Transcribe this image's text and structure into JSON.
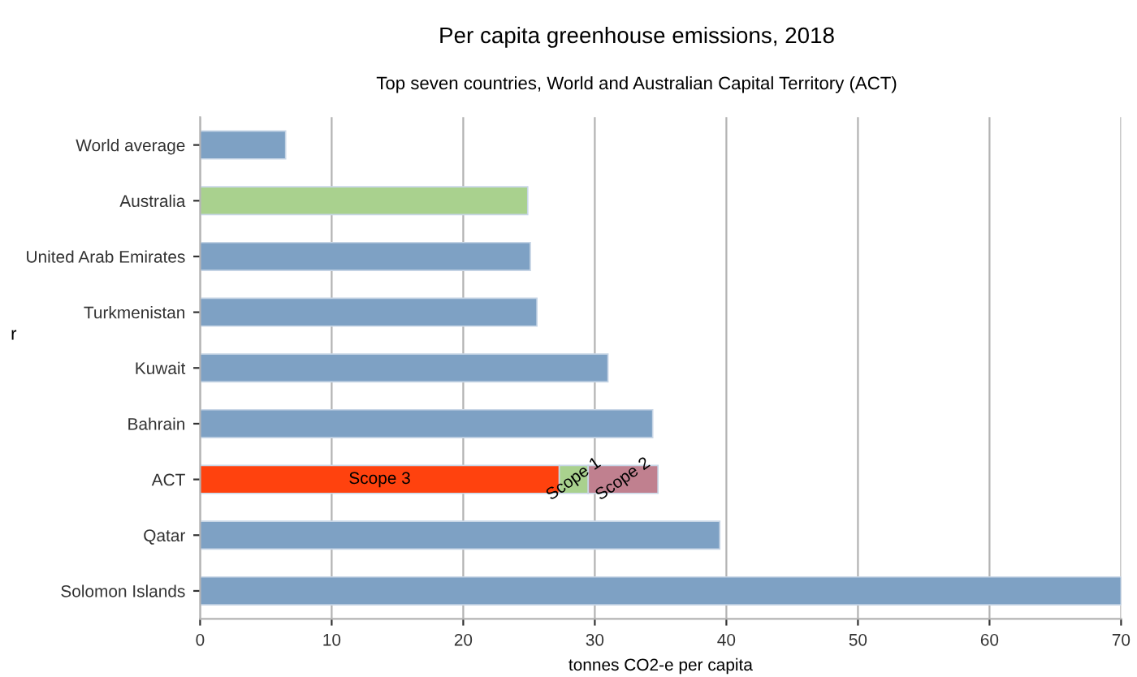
{
  "chart_data": {
    "type": "bar",
    "orientation": "horizontal",
    "stacked": true,
    "title": "Per capita greenhouse emissions, 2018",
    "subtitle": "Top seven countries, World and Australian Capital Territory (ACT)",
    "xlabel": "tonnes CO2-e per capita",
    "ylabel": "r",
    "categories": [
      "World average",
      "Australia",
      "United Arab Emirates",
      "Turkmenistan",
      "Kuwait",
      "Bahrain",
      "ACT",
      "Qatar",
      "Solomon Islands"
    ],
    "series": [
      {
        "colors": [
          "#7ea1c4",
          "#a9d18e",
          "#7ea1c4",
          "#7ea1c4",
          "#7ea1c4",
          "#7ea1c4",
          "#7ea1c4",
          "#7ea1c4",
          "#7ea1c4"
        ],
        "values": [
          6.5,
          24.9,
          25.1,
          25.6,
          31.0,
          34.4,
          null,
          39.5,
          70
        ]
      },
      {
        "name": "Scope 3",
        "color": "#ff420e",
        "values": [
          null,
          null,
          null,
          null,
          null,
          null,
          27.3,
          null,
          null
        ]
      },
      {
        "name": "Scope 1",
        "color": "#a9d18e",
        "values": [
          null,
          null,
          null,
          null,
          null,
          null,
          2.2,
          null,
          null
        ]
      },
      {
        "name": "Scope 2",
        "color": "#c0808f",
        "values": [
          null,
          null,
          null,
          null,
          null,
          null,
          5.3,
          null,
          null
        ]
      }
    ],
    "xlim": [
      0,
      70
    ],
    "xticks": [
      0,
      10,
      20,
      30,
      40,
      50,
      60,
      70
    ],
    "grid": "x",
    "legend": false
  }
}
